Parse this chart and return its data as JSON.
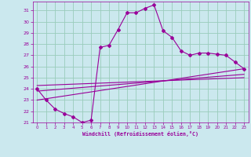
{
  "xlabel": "Windchill (Refroidissement éolien,°C)",
  "background_color": "#cbe8ee",
  "line_color": "#990099",
  "grid_color": "#99ccbb",
  "xlim": [
    -0.5,
    23.5
  ],
  "ylim": [
    21,
    31.8
  ],
  "yticks": [
    21,
    22,
    23,
    24,
    25,
    26,
    27,
    28,
    29,
    30,
    31
  ],
  "xticks": [
    0,
    1,
    2,
    3,
    4,
    5,
    6,
    7,
    8,
    9,
    10,
    11,
    12,
    13,
    14,
    15,
    16,
    17,
    18,
    19,
    20,
    21,
    22,
    23
  ],
  "series1_x": [
    0,
    1,
    2,
    3,
    4,
    5,
    6,
    7,
    8,
    9,
    10,
    11,
    12,
    13,
    14,
    15,
    16,
    17,
    18,
    19,
    20,
    21,
    22,
    23
  ],
  "series1_y": [
    24.0,
    23.0,
    22.2,
    21.8,
    21.5,
    21.0,
    21.2,
    27.7,
    27.9,
    29.3,
    30.8,
    30.8,
    31.2,
    31.5,
    29.2,
    28.6,
    27.4,
    27.0,
    27.2,
    27.2,
    27.1,
    27.0,
    26.4,
    25.8
  ],
  "series2_x": [
    0,
    23
  ],
  "series2_y": [
    23.0,
    25.8
  ],
  "series3_x": [
    0,
    23
  ],
  "series3_y": [
    23.8,
    25.3
  ],
  "series4_x": [
    0,
    23
  ],
  "series4_y": [
    24.3,
    25.0
  ]
}
